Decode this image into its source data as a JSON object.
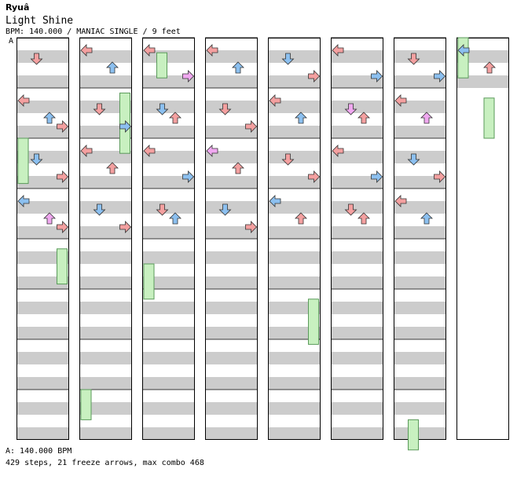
{
  "song": {
    "artist": "Ryuâ",
    "title": "Light Shine",
    "meta": "BPM: 140.000 / MANIAC SINGLE / 9 feet"
  },
  "section_marker": "A",
  "footer": {
    "bpm_line": "A: 140.000 BPM",
    "stats_line": "429 steps, 21 freeze arrows, max combo 468"
  },
  "colors": {
    "quarter_arrow": "#f4a0a0",
    "eighth_arrow": "#8cc0f0",
    "sixteenth_arrow": "#f0a8f0",
    "freeze": "#c8f0c0",
    "stripe": "#cccccc"
  },
  "chart_data": {
    "type": "step_chart",
    "lanes": [
      "left",
      "down",
      "up",
      "right"
    ],
    "measures_per_column": 8,
    "column_count": 8,
    "total_measures": 57,
    "notes": [
      [
        0,
        0,
        1,
        4
      ],
      [
        0,
        1,
        0,
        4
      ],
      [
        0,
        1,
        2,
        8
      ],
      [
        0,
        1,
        3,
        4
      ],
      [
        0,
        2,
        1,
        8
      ],
      [
        0,
        2,
        3,
        4
      ],
      [
        0,
        3,
        0,
        8
      ],
      [
        0,
        3,
        2,
        16
      ],
      [
        0,
        3,
        3,
        4
      ],
      [
        1,
        0,
        0,
        4
      ],
      [
        1,
        0,
        2,
        8
      ],
      [
        1,
        1,
        1,
        4
      ],
      [
        1,
        1,
        3,
        8
      ],
      [
        1,
        2,
        0,
        4
      ],
      [
        1,
        2,
        2,
        4
      ],
      [
        1,
        3,
        1,
        8
      ],
      [
        1,
        3,
        3,
        4
      ],
      [
        2,
        0,
        0,
        4
      ],
      [
        2,
        0,
        3,
        16
      ],
      [
        2,
        1,
        1,
        8
      ],
      [
        2,
        1,
        2,
        4
      ],
      [
        2,
        2,
        0,
        4
      ],
      [
        2,
        2,
        3,
        8
      ],
      [
        2,
        3,
        1,
        4
      ],
      [
        2,
        3,
        2,
        8
      ],
      [
        3,
        0,
        0,
        4
      ],
      [
        3,
        0,
        2,
        8
      ],
      [
        3,
        1,
        1,
        4
      ],
      [
        3,
        1,
        3,
        4
      ],
      [
        3,
        2,
        0,
        16
      ],
      [
        3,
        2,
        2,
        4
      ],
      [
        3,
        3,
        1,
        8
      ],
      [
        3,
        3,
        3,
        4
      ],
      [
        4,
        0,
        1,
        8
      ],
      [
        4,
        0,
        3,
        4
      ],
      [
        4,
        1,
        0,
        4
      ],
      [
        4,
        1,
        2,
        8
      ],
      [
        4,
        2,
        1,
        4
      ],
      [
        4,
        2,
        3,
        4
      ],
      [
        4,
        3,
        0,
        8
      ],
      [
        4,
        3,
        2,
        4
      ],
      [
        5,
        0,
        0,
        4
      ],
      [
        5,
        0,
        3,
        8
      ],
      [
        5,
        1,
        1,
        16
      ],
      [
        5,
        1,
        2,
        4
      ],
      [
        5,
        2,
        0,
        4
      ],
      [
        5,
        2,
        3,
        8
      ],
      [
        5,
        3,
        1,
        4
      ],
      [
        5,
        3,
        2,
        4
      ],
      [
        6,
        0,
        1,
        4
      ],
      [
        6,
        0,
        3,
        8
      ],
      [
        6,
        1,
        0,
        4
      ],
      [
        6,
        1,
        2,
        16
      ],
      [
        6,
        2,
        1,
        8
      ],
      [
        6,
        2,
        3,
        4
      ],
      [
        6,
        3,
        0,
        4
      ],
      [
        6,
        3,
        2,
        8
      ],
      [
        7,
        0,
        0,
        8
      ],
      [
        7,
        0,
        2,
        4
      ],
      [
        7,
        1,
        1,
        4
      ],
      [
        7,
        1,
        3,
        8
      ],
      [
        7,
        2,
        0,
        16
      ],
      [
        7,
        2,
        2,
        4
      ],
      [
        7,
        3,
        1,
        4
      ],
      [
        7,
        3,
        3,
        8
      ]
    ],
    "freezes": [
      [
        0,
        2,
        0,
        0.0,
        0.9
      ],
      [
        0,
        4,
        3,
        0.2,
        0.9
      ],
      [
        1,
        1,
        3,
        0.1,
        1.3
      ],
      [
        1,
        7,
        0,
        0.0,
        0.6
      ],
      [
        2,
        0,
        1,
        0.3,
        0.8
      ],
      [
        2,
        4,
        0,
        0.5,
        1.2
      ],
      [
        4,
        5,
        3,
        0.2,
        1.1
      ],
      [
        6,
        7,
        1,
        0.6,
        1.2
      ],
      [
        7,
        0,
        0,
        0.0,
        0.8
      ],
      [
        7,
        1,
        2,
        0.2,
        1.0
      ]
    ]
  }
}
